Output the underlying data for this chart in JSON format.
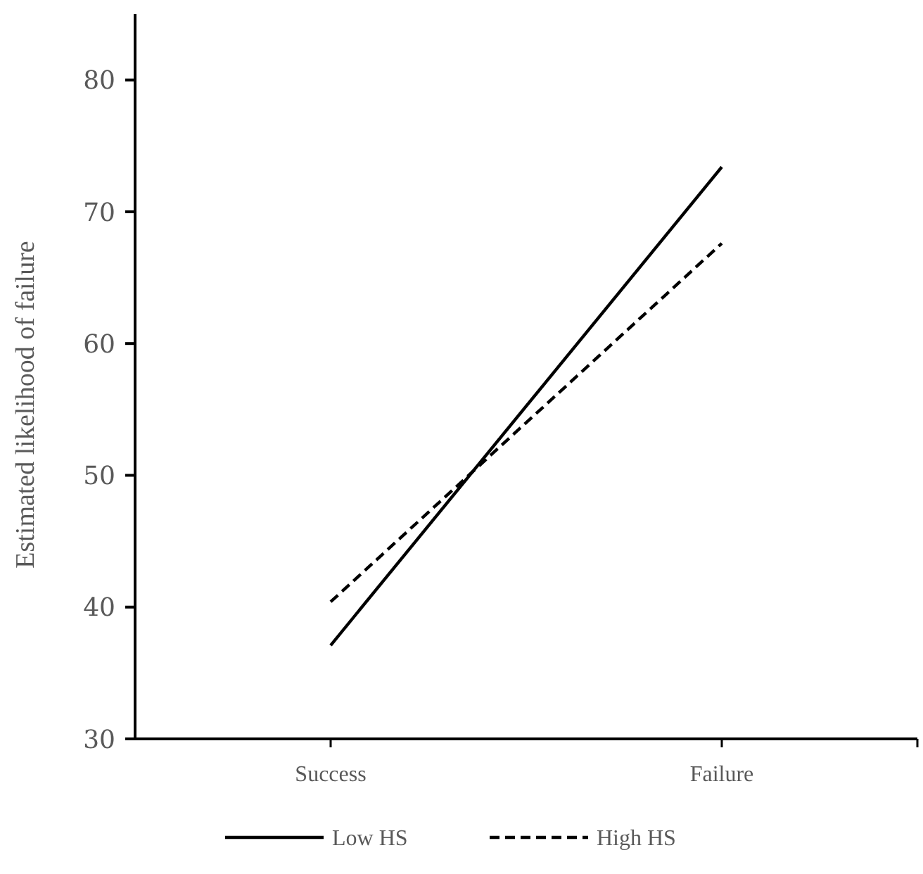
{
  "chart_data": {
    "type": "line",
    "ylabel": "Estimated likelihood of failure",
    "categories": [
      "Success",
      "Failure"
    ],
    "series": [
      {
        "name": "Low HS",
        "color": "#000000",
        "values": [
          37.1,
          73.4
        ],
        "line_style": "solid"
      },
      {
        "name": "High HS",
        "color": "#000000",
        "values": [
          40.4,
          67.6
        ],
        "line_style": "dashed"
      }
    ],
    "ylim": [
      30,
      85
    ],
    "yticks": [
      30,
      40,
      50,
      60,
      70,
      80
    ],
    "grid": false,
    "legend": "bottom",
    "marker": "none"
  }
}
